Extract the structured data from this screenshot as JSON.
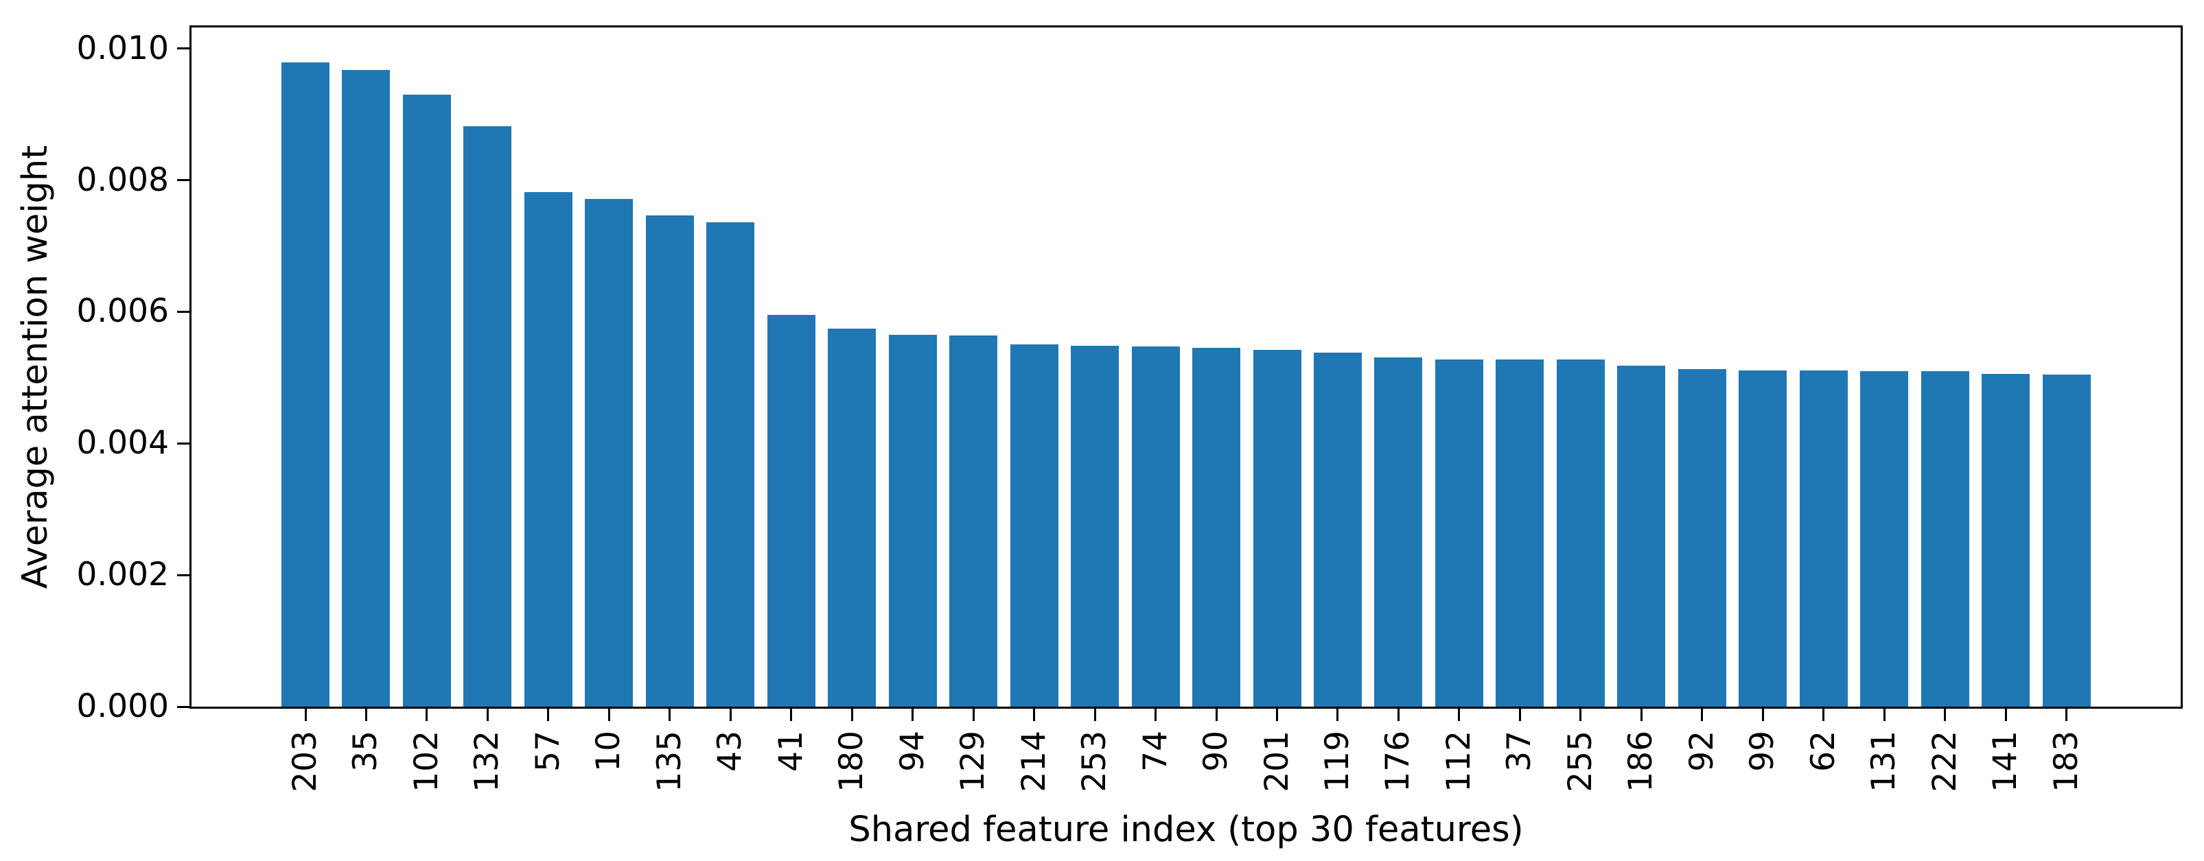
{
  "figure": {
    "background": "#ffffff",
    "bar_color": "#1f77b4",
    "spine_color": "#000000",
    "tick_color": "#000000"
  },
  "chart_data": {
    "type": "bar",
    "title": "",
    "xlabel": "Shared feature index (top 30 features)",
    "ylabel": "Average attention weight",
    "categories": [
      "203",
      "35",
      "102",
      "132",
      "57",
      "10",
      "135",
      "43",
      "41",
      "180",
      "94",
      "129",
      "214",
      "253",
      "74",
      "90",
      "201",
      "119",
      "176",
      "112",
      "37",
      "255",
      "186",
      "92",
      "99",
      "62",
      "131",
      "222",
      "141",
      "183"
    ],
    "values": [
      0.00979,
      0.00967,
      0.0093,
      0.00882,
      0.00782,
      0.00771,
      0.00746,
      0.00736,
      0.00595,
      0.00574,
      0.00565,
      0.00564,
      0.0055,
      0.00548,
      0.00547,
      0.00545,
      0.00542,
      0.00538,
      0.00531,
      0.00528,
      0.00527,
      0.00527,
      0.00518,
      0.00513,
      0.00511,
      0.00511,
      0.0051,
      0.0051,
      0.00506,
      0.00505
    ],
    "ylim": [
      0,
      0.01032
    ],
    "yticks": [
      "0.000",
      "0.002",
      "0.004",
      "0.006",
      "0.008",
      "0.010"
    ],
    "ytick_values": [
      0.0,
      0.002,
      0.004,
      0.006,
      0.008,
      0.01
    ],
    "xtick_rotation": 90,
    "grid": false,
    "legend": null,
    "bar_count": 30
  }
}
